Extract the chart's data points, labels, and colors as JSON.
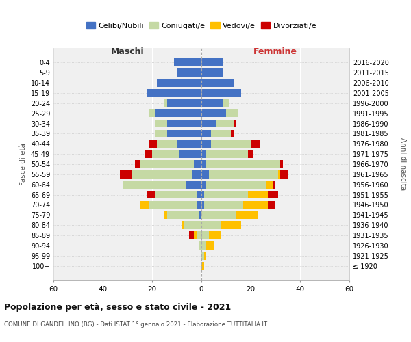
{
  "age_groups": [
    "100+",
    "95-99",
    "90-94",
    "85-89",
    "80-84",
    "75-79",
    "70-74",
    "65-69",
    "60-64",
    "55-59",
    "50-54",
    "45-49",
    "40-44",
    "35-39",
    "30-34",
    "25-29",
    "20-24",
    "15-19",
    "10-14",
    "5-9",
    "0-4"
  ],
  "birth_years": [
    "≤ 1920",
    "1921-1925",
    "1926-1930",
    "1931-1935",
    "1936-1940",
    "1941-1945",
    "1946-1950",
    "1951-1955",
    "1956-1960",
    "1961-1965",
    "1966-1970",
    "1971-1975",
    "1976-1980",
    "1981-1985",
    "1986-1990",
    "1991-1995",
    "1996-2000",
    "2001-2005",
    "2006-2010",
    "2011-2015",
    "2016-2020"
  ],
  "male": {
    "celibi": [
      0,
      0,
      0,
      0,
      0,
      1,
      2,
      2,
      6,
      4,
      3,
      9,
      10,
      14,
      14,
      19,
      14,
      22,
      18,
      10,
      11
    ],
    "coniugati": [
      0,
      0,
      1,
      2,
      7,
      13,
      19,
      17,
      26,
      24,
      22,
      11,
      8,
      5,
      5,
      2,
      1,
      0,
      0,
      0,
      0
    ],
    "vedovi": [
      0,
      0,
      0,
      1,
      1,
      1,
      4,
      0,
      0,
      0,
      0,
      0,
      0,
      0,
      0,
      0,
      0,
      0,
      0,
      0,
      0
    ],
    "divorziati": [
      0,
      0,
      0,
      2,
      0,
      0,
      0,
      3,
      0,
      5,
      2,
      3,
      3,
      0,
      0,
      0,
      0,
      0,
      0,
      0,
      0
    ]
  },
  "female": {
    "nubili": [
      0,
      0,
      0,
      0,
      0,
      0,
      1,
      1,
      2,
      3,
      2,
      2,
      4,
      4,
      6,
      10,
      9,
      16,
      13,
      9,
      9
    ],
    "coniugate": [
      0,
      1,
      2,
      3,
      8,
      14,
      16,
      18,
      24,
      28,
      30,
      17,
      16,
      8,
      7,
      5,
      2,
      0,
      0,
      0,
      0
    ],
    "vedove": [
      1,
      1,
      3,
      5,
      8,
      9,
      10,
      8,
      3,
      1,
      0,
      0,
      0,
      0,
      0,
      0,
      0,
      0,
      0,
      0,
      0
    ],
    "divorziate": [
      0,
      0,
      0,
      0,
      0,
      0,
      3,
      4,
      1,
      3,
      1,
      2,
      4,
      1,
      1,
      0,
      0,
      0,
      0,
      0,
      0
    ]
  },
  "colors": {
    "celibi": "#4472c4",
    "coniugati": "#c5d9a4",
    "vedovi": "#ffc000",
    "divorziati": "#cc0000"
  },
  "xlim": 60,
  "title": "Popolazione per età, sesso e stato civile - 2021",
  "subtitle": "COMUNE DI GANDELLINO (BG) - Dati ISTAT 1° gennaio 2021 - Elaborazione TUTTITALIA.IT",
  "ylabel_left": "Fasce di età",
  "ylabel_right": "Anni di nascita",
  "xlabel_left": "Maschi",
  "xlabel_right": "Femmine",
  "legend_labels": [
    "Celibi/Nubili",
    "Coniugati/e",
    "Vedovi/e",
    "Divorziati/e"
  ],
  "bg_color": "#f0f0f0"
}
